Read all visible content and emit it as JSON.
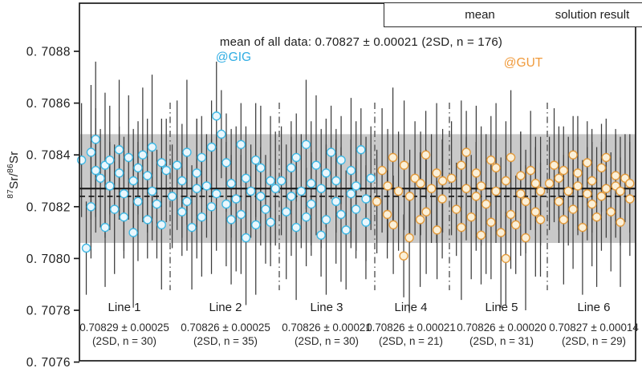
{
  "figure": {
    "y_axis_label": {
      "sup1": "87",
      "mid": "Sr/",
      "sup2": "86",
      "end": "Sr"
    },
    "legend": {
      "mean_label": "mean",
      "solution_label": "solution result"
    },
    "annotations": {
      "mean_text": "mean of all data: 0.70827 ± 0.00021 (2SD, n = 176)",
      "gig_label": "@GIG",
      "gut_label": "@GUT"
    }
  },
  "chart_data": {
    "type": "scatter",
    "title": "mean of all data: 0.70827 ± 0.00021 (2SD, n = 176)",
    "ylabel": "87Sr/86Sr",
    "xlabel": "",
    "ylim": [
      0.7076,
      0.70892
    ],
    "grid": false,
    "legend_position": "top-right",
    "legend_entries": [
      "mean",
      "solution result"
    ],
    "yticks": [
      {
        "value": 0.7088,
        "label": "0. 7088"
      },
      {
        "value": 0.7086,
        "label": "0. 7086"
      },
      {
        "value": 0.7084,
        "label": "0. 7084"
      },
      {
        "value": 0.7082,
        "label": "0. 7082"
      },
      {
        "value": 0.708,
        "label": "0. 7080"
      },
      {
        "value": 0.7078,
        "label": "0. 7078"
      },
      {
        "value": 0.7076,
        "label": "0. 7076"
      }
    ],
    "mean_all": {
      "value": 0.70827,
      "two_sd": 0.00021,
      "n": 176
    },
    "solution_result_value": 0.70824,
    "band_2sd": {
      "low": 0.70806,
      "high": 0.70848
    },
    "colors": {
      "gig_stroke": "#3fb8e4",
      "gig_fill": "#eaf7fd",
      "gut_stroke": "#e29a3c",
      "gut_fill": "#fbf0d8",
      "gig_text": "#2fade3",
      "gut_text": "#f09a3b",
      "band": "#c9c9c9",
      "error_bar": "#3c3c3c",
      "frame": "#1b1b1b",
      "separator": "#555555"
    },
    "groups": [
      {
        "name": "@GIG",
        "lines": [
          "Line 1",
          "Line 2",
          "Line 3"
        ]
      },
      {
        "name": "@GUT",
        "lines": [
          "Line 4",
          "Line 5",
          "Line 6"
        ]
      }
    ],
    "error_scale_note": "errors_2sd_x1e5 are 2SD half-widths in units of 0.00001",
    "lines": [
      {
        "label": "Line 1",
        "group": "GIG",
        "stats": "0.70829 ± 0.00025",
        "n_text": "(2SD, n = 30)",
        "values": [
          0.70838,
          0.70804,
          0.70841,
          0.7082,
          0.70834,
          0.70846,
          0.70831,
          0.70812,
          0.70836,
          0.70828,
          0.70838,
          0.70819,
          0.70833,
          0.70842,
          0.70825,
          0.70816,
          0.70839,
          0.7083,
          0.7081,
          0.70835,
          0.70822,
          0.7084,
          0.70815,
          0.70832,
          0.70826,
          0.70843,
          0.70821,
          0.70837,
          0.70813,
          0.70834
        ],
        "errors_2sd_x1e5": [
          22,
          18,
          26,
          20,
          24,
          30,
          19,
          23,
          28,
          17,
          21,
          25,
          18,
          27,
          22,
          16,
          24,
          20,
          29,
          18,
          23,
          26,
          15,
          22,
          19,
          28,
          21,
          17,
          25,
          20
        ]
      },
      {
        "label": "Line 2",
        "group": "GIG",
        "stats": "0.70826 ± 0.00025",
        "n_text": "(2SD, n = 35)",
        "values": [
          0.70824,
          0.70836,
          0.70818,
          0.7083,
          0.70841,
          0.70822,
          0.70812,
          0.70833,
          0.70827,
          0.70839,
          0.70816,
          0.70828,
          0.7082,
          0.70843,
          0.70825,
          0.70855,
          0.70848,
          0.70821,
          0.70837,
          0.70815,
          0.70829,
          0.70823,
          0.70844,
          0.70817,
          0.70831,
          0.70808,
          0.70826,
          0.70838,
          0.70813,
          0.70824,
          0.70835,
          0.70819,
          0.7083,
          0.70814,
          0.70827
        ],
        "errors_2sd_x1e5": [
          20,
          25,
          17,
          22,
          28,
          19,
          24,
          21,
          27,
          16,
          23,
          20,
          26,
          18,
          22,
          21,
          17,
          24,
          19,
          25,
          21,
          28,
          16,
          23,
          20,
          26,
          18,
          22,
          27,
          19,
          24,
          21,
          25,
          17,
          22
        ]
      },
      {
        "label": "Line 3",
        "group": "GIG",
        "stats": "0.70826 ± 0.00021",
        "n_text": "(2SD, n = 30)",
        "values": [
          0.7083,
          0.70818,
          0.70835,
          0.70824,
          0.70812,
          0.70839,
          0.70826,
          0.70844,
          0.70816,
          0.70829,
          0.70821,
          0.70836,
          0.70809,
          0.70827,
          0.70833,
          0.70815,
          0.70841,
          0.70822,
          0.7083,
          0.70817,
          0.70838,
          0.70811,
          0.70825,
          0.70834,
          0.70819,
          0.70828,
          0.70842,
          0.70814,
          0.70823,
          0.70831
        ],
        "errors_2sd_x1e5": [
          21,
          26,
          18,
          23,
          28,
          17,
          22,
          25,
          19,
          24,
          20,
          27,
          16,
          23,
          21,
          29,
          18,
          24,
          20,
          26,
          17,
          23,
          21,
          28,
          19,
          25,
          16,
          22,
          24,
          20
        ]
      },
      {
        "label": "Line 4",
        "group": "GUT",
        "stats": "0.70826 ± 0.00021",
        "n_text": "(2SD, n = 21)",
        "values": [
          0.70822,
          0.70834,
          0.70817,
          0.70828,
          0.70839,
          0.70813,
          0.70826,
          0.70801,
          0.70836,
          0.70808,
          0.70824,
          0.70831,
          0.70815,
          0.70829,
          0.7084,
          0.70818,
          0.70827,
          0.70833,
          0.70811,
          0.70823,
          0.7083
        ],
        "errors_2sd_x1e5": [
          20,
          24,
          17,
          22,
          27,
          19,
          23,
          16,
          25,
          29,
          18,
          22,
          26,
          20,
          17,
          24,
          21,
          27,
          19,
          23,
          20
        ]
      },
      {
        "label": "Line 5",
        "group": "GUT",
        "stats": "0.70826 ± 0.00020",
        "n_text": "(2SD, n = 31)",
        "values": [
          0.70831,
          0.70819,
          0.70836,
          0.70812,
          0.70827,
          0.70841,
          0.70816,
          0.70824,
          0.70833,
          0.70809,
          0.70828,
          0.70821,
          0.70838,
          0.70814,
          0.70826,
          0.70835,
          0.7081,
          0.708,
          0.7083,
          0.70817,
          0.70839,
          0.70813,
          0.70825,
          0.70832,
          0.70808,
          0.70822,
          0.70834,
          0.70818,
          0.70829,
          0.70815,
          0.70826
        ],
        "errors_2sd_x1e5": [
          22,
          18,
          25,
          28,
          20,
          16,
          24,
          21,
          26,
          19,
          23,
          27,
          17,
          22,
          20,
          25,
          29,
          18,
          23,
          21,
          26,
          19,
          24,
          17,
          28,
          20,
          23,
          25,
          18,
          22,
          21
        ]
      },
      {
        "label": "Line 6",
        "group": "GUT",
        "stats": "0.70827 ± 0.00014",
        "n_text": "(2SD, n = 29)",
        "values": [
          0.70829,
          0.70836,
          0.70822,
          0.70831,
          0.70815,
          0.70834,
          0.70826,
          0.7084,
          0.70819,
          0.70828,
          0.70833,
          0.70812,
          0.70825,
          0.70837,
          0.70821,
          0.7083,
          0.70816,
          0.70835,
          0.70824,
          0.70827,
          0.70839,
          0.70818,
          0.70828,
          0.70832,
          0.70814,
          0.70826,
          0.70831,
          0.70823,
          0.70829
        ],
        "errors_2sd_x1e5": [
          18,
          22,
          16,
          20,
          25,
          17,
          21,
          15,
          23,
          19,
          22,
          26,
          18,
          16,
          24,
          20,
          27,
          17,
          21,
          19,
          15,
          23,
          20,
          18,
          25,
          21,
          17,
          22,
          19
        ]
      }
    ]
  }
}
